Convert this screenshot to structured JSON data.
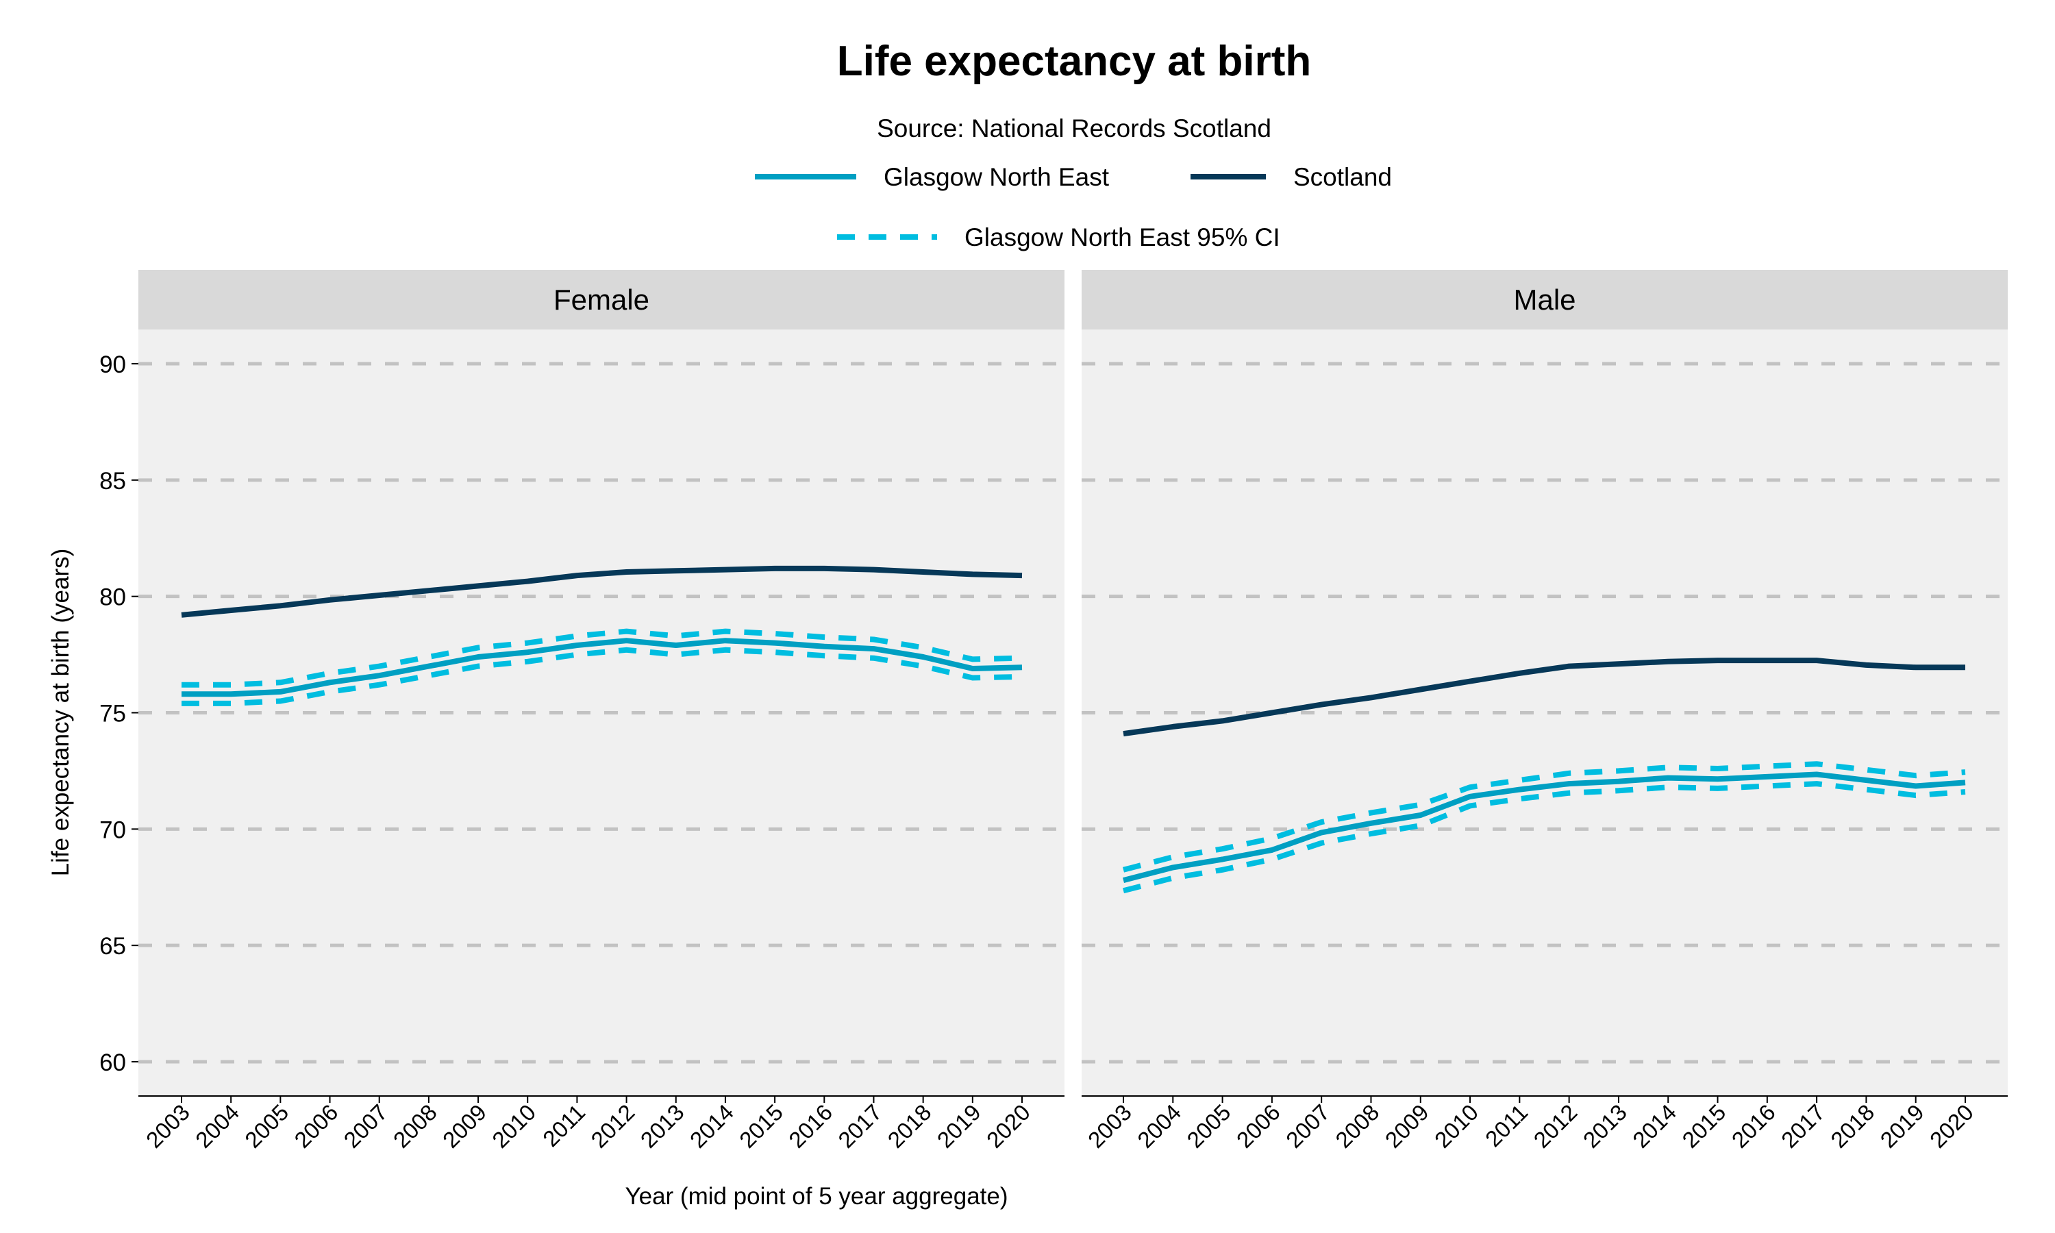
{
  "chart_data": {
    "type": "line",
    "title": "Life expectancy at birth",
    "subtitle": "Source: National Records Scotland",
    "xlabel": "Year (mid point of 5 year aggregate)",
    "ylabel": "Life expectancy at birth (years)",
    "ylim": [
      58.5,
      91.5
    ],
    "yticks": [
      60,
      65,
      70,
      75,
      80,
      85,
      90
    ],
    "grid": "horizontal dashed",
    "legend_position": "top",
    "legend": [
      {
        "label": "Glasgow North East",
        "color": "#009fc2",
        "style": "solid"
      },
      {
        "label": "Scotland",
        "color": "#063858",
        "style": "solid"
      },
      {
        "label": "Glasgow North East 95% CI",
        "color": "#00bde0",
        "style": "dashed"
      }
    ],
    "x": [
      2003,
      2004,
      2005,
      2006,
      2007,
      2008,
      2009,
      2010,
      2011,
      2012,
      2013,
      2014,
      2015,
      2016,
      2017,
      2018,
      2019,
      2020
    ],
    "panels": [
      {
        "label": "Female",
        "series": [
          {
            "name": "Scotland",
            "values": [
              79.2,
              79.4,
              79.6,
              79.85,
              80.05,
              80.25,
              80.45,
              80.65,
              80.9,
              81.05,
              81.1,
              81.15,
              81.2,
              81.2,
              81.15,
              81.05,
              80.95,
              80.9
            ]
          },
          {
            "name": "Glasgow North East",
            "values": [
              75.8,
              75.8,
              75.9,
              76.3,
              76.6,
              77.0,
              77.4,
              77.6,
              77.9,
              78.1,
              77.9,
              78.1,
              78.0,
              77.85,
              77.75,
              77.4,
              76.9,
              76.95
            ]
          },
          {
            "name": "Glasgow North East 95% CI upper",
            "values": [
              76.2,
              76.2,
              76.3,
              76.7,
              77.0,
              77.4,
              77.8,
              78.0,
              78.3,
              78.5,
              78.3,
              78.5,
              78.4,
              78.25,
              78.15,
              77.8,
              77.3,
              77.35
            ]
          },
          {
            "name": "Glasgow North East 95% CI lower",
            "values": [
              75.4,
              75.4,
              75.5,
              75.9,
              76.2,
              76.6,
              77.0,
              77.2,
              77.5,
              77.7,
              77.5,
              77.7,
              77.6,
              77.45,
              77.35,
              77.0,
              76.5,
              76.55
            ]
          }
        ]
      },
      {
        "label": "Male",
        "series": [
          {
            "name": "Scotland",
            "values": [
              74.1,
              74.4,
              74.65,
              75.0,
              75.35,
              75.65,
              76.0,
              76.35,
              76.7,
              77.0,
              77.1,
              77.2,
              77.25,
              77.25,
              77.25,
              77.05,
              76.95,
              76.95
            ]
          },
          {
            "name": "Glasgow North East",
            "values": [
              67.8,
              68.35,
              68.7,
              69.1,
              69.85,
              70.25,
              70.6,
              71.4,
              71.7,
              71.95,
              72.05,
              72.2,
              72.15,
              72.25,
              72.35,
              72.1,
              71.85,
              72.0
            ]
          },
          {
            "name": "Glasgow North East 95% CI upper",
            "values": [
              68.25,
              68.8,
              69.15,
              69.6,
              70.3,
              70.7,
              71.05,
              71.8,
              72.1,
              72.4,
              72.5,
              72.65,
              72.6,
              72.7,
              72.8,
              72.55,
              72.3,
              72.45
            ]
          },
          {
            "name": "Glasgow North East 95% CI lower",
            "values": [
              67.35,
              67.9,
              68.25,
              68.7,
              69.4,
              69.8,
              70.15,
              71.0,
              71.3,
              71.55,
              71.65,
              71.8,
              71.75,
              71.85,
              71.95,
              71.7,
              71.45,
              71.6
            ]
          }
        ]
      }
    ]
  }
}
